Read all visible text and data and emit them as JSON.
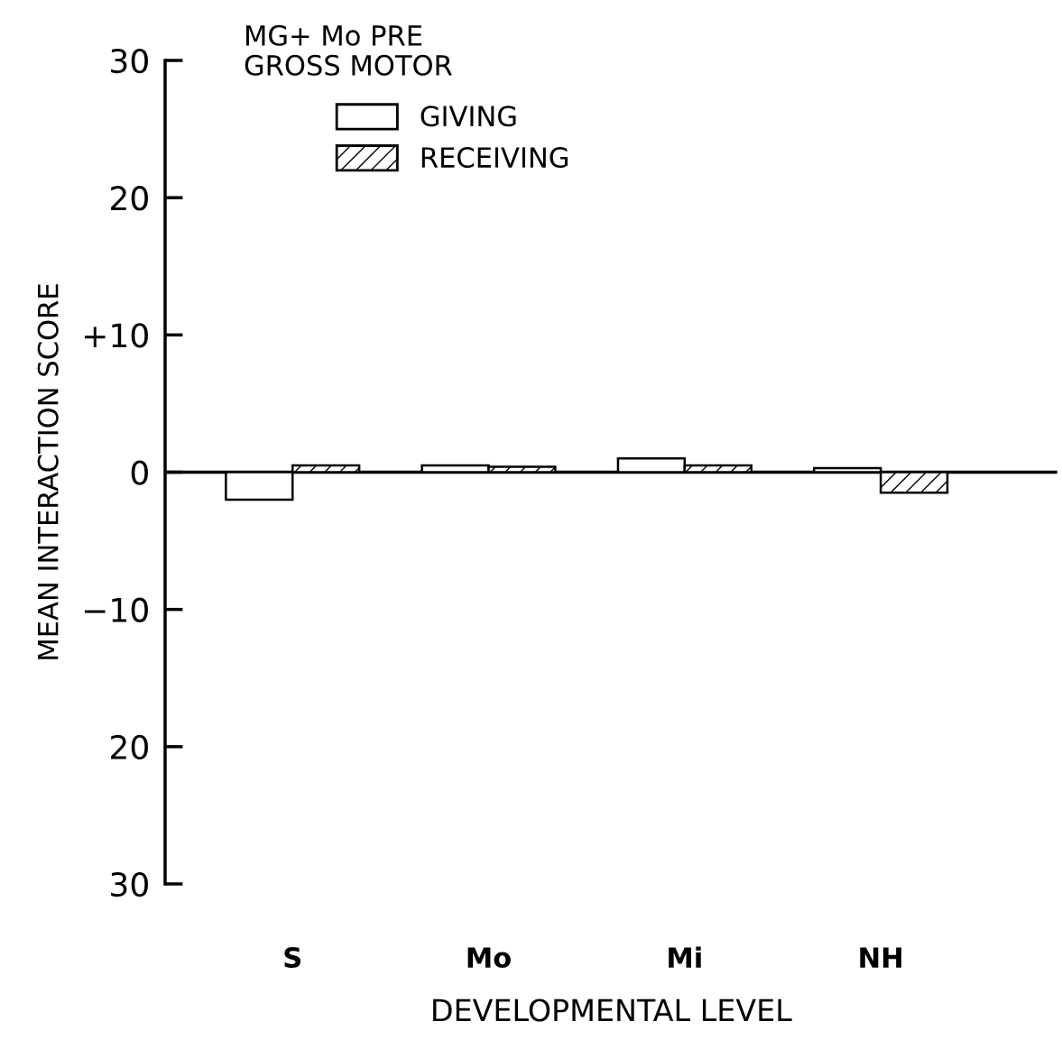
{
  "chart_data": {
    "type": "bar",
    "title": "MG+ Mo PRE",
    "subtitle": "GROSS MOTOR",
    "xlabel": "DEVELOPMENTAL LEVEL",
    "ylabel": "MEAN INTERACTION SCORE",
    "categories": [
      "S",
      "Mo",
      "Mi",
      "NH"
    ],
    "series": [
      {
        "name": "GIVING",
        "color": "#ffffff",
        "values": [
          -2,
          0.5,
          1,
          0.3
        ]
      },
      {
        "name": "RECEIVING",
        "color": "#000000",
        "values": [
          0.5,
          0.4,
          0.5,
          -1.5
        ]
      }
    ],
    "ylim": [
      -30,
      30
    ],
    "yticks": [
      {
        "value": 30,
        "label": "30"
      },
      {
        "value": 20,
        "label": "20"
      },
      {
        "value": 10,
        "label": "+10"
      },
      {
        "value": 0,
        "label": "0"
      },
      {
        "value": -10,
        "label": "−10"
      },
      {
        "value": -20,
        "label": "20"
      },
      {
        "value": -30,
        "label": "30"
      }
    ],
    "ref_lines": [
      {
        "axis": "y",
        "value": 0,
        "color": "#000000"
      }
    ],
    "grid": false,
    "legend": "top left"
  }
}
